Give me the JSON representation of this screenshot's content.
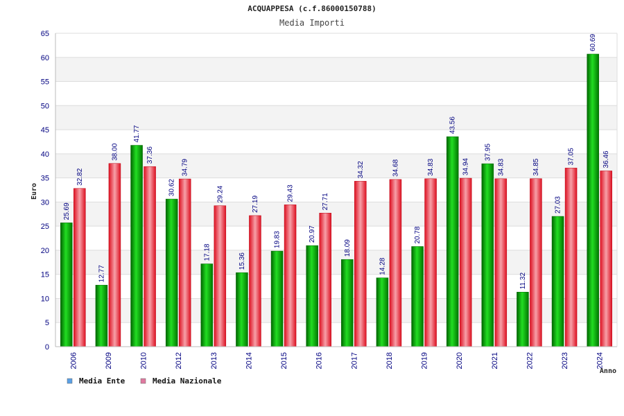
{
  "chart_data": {
    "type": "bar",
    "title": "ACQUAPPESA (c.f.86000150788)",
    "subtitle": "Media Importi",
    "xlabel": "Anno",
    "ylabel": "Euro",
    "ylim": [
      0,
      65
    ],
    "yticks": [
      "0",
      "5",
      "10",
      "15",
      "20",
      "25",
      "30",
      "35",
      "40",
      "45",
      "50",
      "55",
      "60",
      "65"
    ],
    "categories": [
      "2006",
      "2009",
      "2010",
      "2012",
      "2013",
      "2014",
      "2015",
      "2016",
      "2017",
      "2018",
      "2019",
      "2020",
      "2021",
      "2022",
      "2023",
      "2024"
    ],
    "series": [
      {
        "name": "Media Ente",
        "color": "#00aa00",
        "values": [
          25.69,
          12.77,
          41.77,
          30.62,
          17.18,
          15.36,
          19.83,
          20.97,
          18.09,
          14.28,
          20.78,
          43.56,
          37.95,
          11.32,
          27.03,
          60.69
        ],
        "labels": [
          "25.69",
          "12.77",
          "41.77",
          "30.62",
          "17.18",
          "15.36",
          "19.83",
          "20.97",
          "18.09",
          "14.28",
          "20.78",
          "43.56",
          "37.95",
          "11.32",
          "27.03",
          "60.69"
        ],
        "legend_color": "#5aa0e6"
      },
      {
        "name": "Media Nazionale",
        "color": "#e0202a",
        "values": [
          32.82,
          38.0,
          37.36,
          34.79,
          29.24,
          27.19,
          29.43,
          27.71,
          34.32,
          34.68,
          34.83,
          34.94,
          34.83,
          34.85,
          37.05,
          36.46
        ],
        "labels": [
          "32.82",
          "38.00",
          "37.36",
          "34.79",
          "29.24",
          "27.19",
          "29.43",
          "27.71",
          "34.32",
          "34.68",
          "34.83",
          "34.94",
          "34.83",
          "34.85",
          "37.05",
          "36.46"
        ],
        "legend_color": "#e07aa0"
      }
    ],
    "grid": true,
    "legend_position": "bottom-left"
  }
}
